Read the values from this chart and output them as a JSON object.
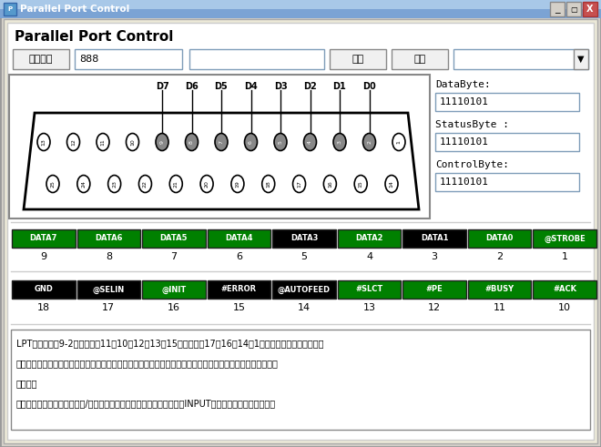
{
  "title": "Parallel Port Control",
  "window_bg": "#d4d0c8",
  "panel_bg": "#ece9d8",
  "white": "#ffffff",
  "figsize": [
    6.6,
    4.91
  ],
  "dpi": 100,
  "row1_labels": [
    "DATA7",
    "DATA6",
    "DATA5",
    "DATA4",
    "DATA3",
    "DATA2",
    "DATA1",
    "DATA0",
    "@STROBE"
  ],
  "row1_nums": [
    "9",
    "8",
    "7",
    "6",
    "5",
    "4",
    "3",
    "2",
    "1"
  ],
  "row1_colors": [
    "#008000",
    "#008000",
    "#008000",
    "#008000",
    "#000000",
    "#008000",
    "#000000",
    "#008000",
    "#008000"
  ],
  "row2_labels": [
    "GND",
    "@SELIN",
    "@INIT",
    "#ERROR",
    "@AUTOFEED",
    "#SLCT",
    "#PE",
    "#BUSY",
    "#ACK"
  ],
  "row2_nums": [
    "18",
    "17",
    "16",
    "15",
    "14",
    "13",
    "12",
    "11",
    "10"
  ],
  "row2_colors": [
    "#000000",
    "#000000",
    "#008000",
    "#000000",
    "#000000",
    "#008000",
    "#008000",
    "#008000",
    "#008000"
  ],
  "d_labels": [
    "D7",
    "D6",
    "D5",
    "D4",
    "D3",
    "D2",
    "D1",
    "D0"
  ],
  "db_label": "DataByte:",
  "db_value": "11110101",
  "sb_label": "StatusByte :",
  "sb_value": "11110101",
  "cb_label": "ControlByte:",
  "cb_value": "11110101",
  "btn_close": "关闭监听",
  "btn_write": "写入",
  "btn_read": "读取",
  "input_888": "888",
  "info_line1": "LPT引脚说明：9-2数据引脚；11、10、12、13、15状态引脚；17、16、14、1控制引脚；其他为接地引脚",
  "info_line2": "使用说明：按鈕红色表示未开启状态，绿色表示输出状态或监听状态时引脚高电平，黑色表示监听状态时引脚处",
  "info_line3": "于低电平",
  "info_line4": "按鈕说明：弹框提示是否开启/关闭监听状态，选择是则对应监听状态（INPUT），选择否则对应输出状态",
  "titlebar_bg": "#c0c0c0",
  "btn_min_color": "#d4d0c8",
  "btn_max_color": "#d4d0c8",
  "btn_close_color": "#c75050"
}
